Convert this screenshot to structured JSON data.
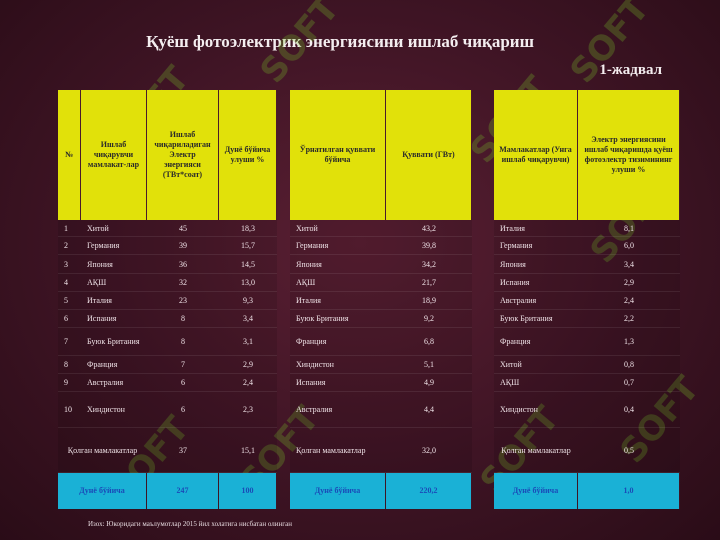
{
  "title": "Қуёш фотоэлектрик энергиясини ишлаб чиқариш",
  "table_number": "1-жадвал",
  "headers": {
    "num": "№",
    "producer": "Ишлаб чиқарувчи мамлакат-лар",
    "energy": "Ишлаб чиқариладиган Электр энергияси (ТВт*соат)",
    "share": "Дунё бўйича улуши %",
    "installed": "Ўрнатилган қуввати бўйича",
    "capacity": "Қуввати (ГВт)",
    "countries": "Мамлакатлар (Унга ишлаб чиқарувчи)",
    "grid_share": "Электр энергиясини ишлаб чиқаришда қуёш фотоэлектр тизимининг улуши %"
  },
  "rows": [
    {
      "n": "1",
      "c1": "Хитой",
      "v1": "45",
      "s1": "18,3",
      "c2": "Хитой",
      "v2": "43,2",
      "c3": "Италия",
      "v3": "8,1"
    },
    {
      "n": "2",
      "c1": "Германия",
      "v1": "39",
      "s1": "15,7",
      "c2": "Германия",
      "v2": "39,8",
      "c3": "Германия",
      "v3": "6,0"
    },
    {
      "n": "3",
      "c1": "Япония",
      "v1": "36",
      "s1": "14,5",
      "c2": "Япония",
      "v2": "34,2",
      "c3": "Япония",
      "v3": "3,4"
    },
    {
      "n": "4",
      "c1": "АҚШ",
      "v1": "32",
      "s1": "13,0",
      "c2": "АҚШ",
      "v2": "21,7",
      "c3": "Испания",
      "v3": "2,9"
    },
    {
      "n": "5",
      "c1": "Италия",
      "v1": "23",
      "s1": "9,3",
      "c2": "Италия",
      "v2": "18,9",
      "c3": "Австралия",
      "v3": "2,4"
    },
    {
      "n": "6",
      "c1": "Испания",
      "v1": "8",
      "s1": "3,4",
      "c2": "Буюк   Британия",
      "v2": "9,2",
      "c3": "Буюк Британия",
      "v3": "2,2"
    },
    {
      "n": "7",
      "c1": "Буюк Британия",
      "v1": "8",
      "s1": "3,1",
      "c2": "Франция",
      "v2": "6,8",
      "c3": "Франция",
      "v3": "1,3"
    },
    {
      "n": "8",
      "c1": "Франция",
      "v1": "7",
      "s1": "2,9",
      "c2": "Хиндистон",
      "v2": "5,1",
      "c3": "Хитой",
      "v3": "0,8"
    },
    {
      "n": "9",
      "c1": "Австралия",
      "v1": "6",
      "s1": "2,4",
      "c2": "Испания",
      "v2": "4,9",
      "c3": "АҚШ",
      "v3": "0,7"
    },
    {
      "n": "10",
      "c1": "Хиндистон",
      "v1": "6",
      "s1": "2,3",
      "c2": "Австралия",
      "v2": "4,4",
      "c3": "Хиндистон",
      "v3": "0,4"
    },
    {
      "n": "",
      "c1": "Қолган мамлакатлар",
      "v1": "37",
      "s1": "15,1",
      "c2": "Қолган мамлакатлар",
      "v2": "32,0",
      "c3": "Қолган мамлакатлар",
      "v3": "0,5"
    }
  ],
  "footer": {
    "label1": "Дунё бўйича",
    "total_energy": "247",
    "total_share": "100",
    "label2": "Дунё бўйича",
    "total_capacity": "220,2",
    "label3": "Дунё бўйича",
    "world_share": "1,0"
  },
  "note": "Изох: Юкоридаги маълумотлар 2015 йил холатига нисбатан олинган",
  "watermark_text": "SOFT"
}
